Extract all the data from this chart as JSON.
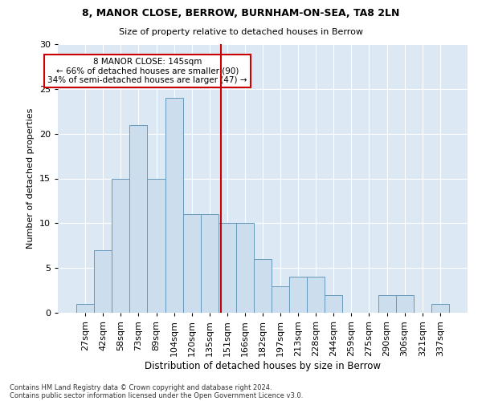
{
  "title1": "8, MANOR CLOSE, BERROW, BURNHAM-ON-SEA, TA8 2LN",
  "title2": "Size of property relative to detached houses in Berrow",
  "xlabel": "Distribution of detached houses by size in Berrow",
  "ylabel": "Number of detached properties",
  "bin_labels": [
    "27sqm",
    "42sqm",
    "58sqm",
    "73sqm",
    "89sqm",
    "104sqm",
    "120sqm",
    "135sqm",
    "151sqm",
    "166sqm",
    "182sqm",
    "197sqm",
    "213sqm",
    "228sqm",
    "244sqm",
    "259sqm",
    "275sqm",
    "290sqm",
    "306sqm",
    "321sqm",
    "337sqm"
  ],
  "bar_heights": [
    1,
    7,
    15,
    21,
    15,
    24,
    11,
    11,
    10,
    10,
    6,
    3,
    4,
    4,
    2,
    0,
    0,
    2,
    2,
    0,
    1
  ],
  "bar_color": "#ccdded",
  "bar_edge_color": "#6699bb",
  "vline_color": "#cc0000",
  "annotation_text": "8 MANOR CLOSE: 145sqm\n← 66% of detached houses are smaller (90)\n34% of semi-detached houses are larger (47) →",
  "annotation_box_color": "#ffffff",
  "annotation_box_edge_color": "#cc0000",
  "ylim": [
    0,
    30
  ],
  "fig_bg_color": "#ffffff",
  "plot_bg_color": "#dce9f5",
  "grid_color": "#ffffff",
  "footer1": "Contains HM Land Registry data © Crown copyright and database right 2024.",
  "footer2": "Contains public sector information licensed under the Open Government Licence v3.0."
}
